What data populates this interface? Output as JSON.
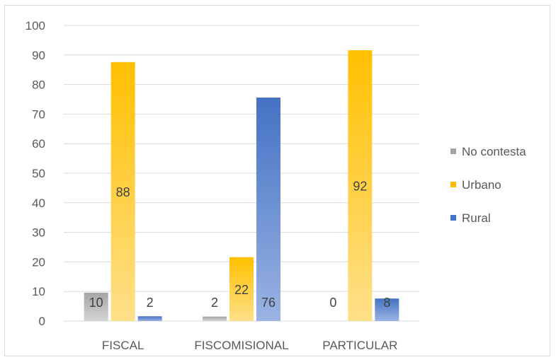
{
  "chart_data": {
    "type": "bar",
    "categories": [
      "FISCAL",
      "FISCOMISIONAL",
      "PARTICULAR"
    ],
    "series": [
      {
        "name": "No contesta",
        "values": [
          10,
          2,
          0
        ],
        "color": "#a5a5a5"
      },
      {
        "name": "Urbano",
        "values": [
          88,
          22,
          92
        ],
        "color": "#ffc000"
      },
      {
        "name": "Rural",
        "values": [
          2,
          76,
          8
        ],
        "color": "#4472c4"
      }
    ],
    "bar_values": [
      [
        9.6,
        1.5,
        0
      ],
      [
        87.6,
        21.6,
        91.6
      ],
      [
        1.6,
        75.6,
        7.6
      ]
    ],
    "ylim": [
      0,
      100
    ],
    "yticks": [
      0,
      10,
      20,
      30,
      40,
      50,
      60,
      70,
      80,
      90,
      100
    ],
    "grid": true,
    "legend_position": "right"
  }
}
